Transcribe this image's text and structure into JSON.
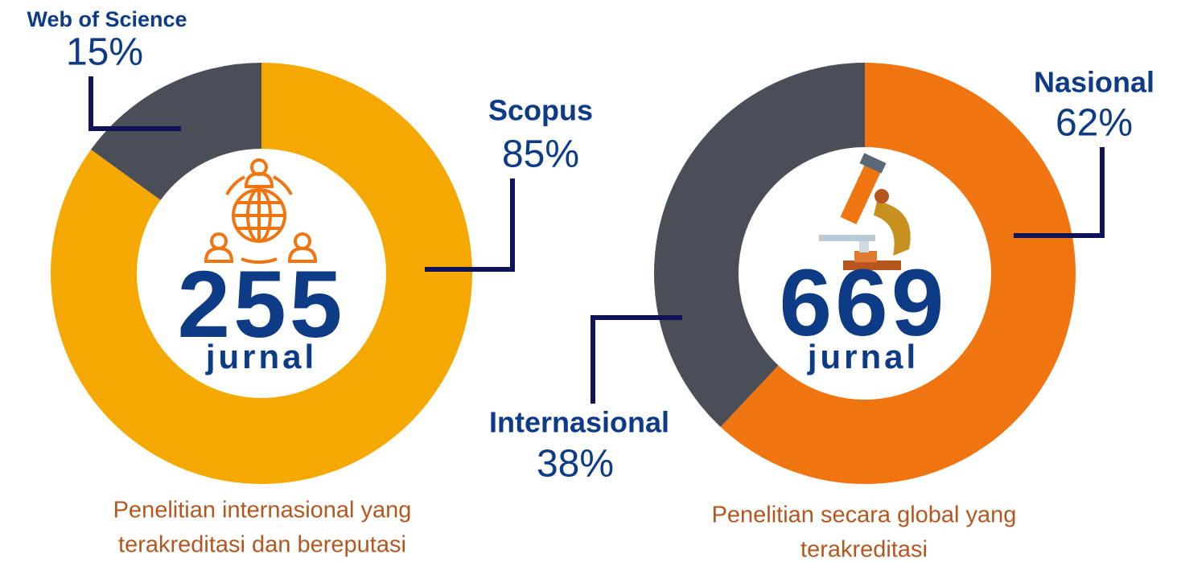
{
  "chart_data": [
    {
      "type": "donut",
      "categories": [
        "Scopus",
        "Web of Science"
      ],
      "values": [
        85,
        15
      ],
      "value_labels": [
        "85%",
        "15%"
      ],
      "colors": [
        "#f5a800",
        "#4a4f57"
      ],
      "total": 255,
      "unit": "jurnal",
      "caption": [
        "Penelitian internasional yang",
        "terakreditasi dan bereputasi"
      ]
    },
    {
      "type": "donut",
      "categories": [
        "Nasional",
        "Internasional"
      ],
      "values": [
        62,
        38
      ],
      "value_labels": [
        "62%",
        "38%"
      ],
      "colors": [
        "#f07510",
        "#4a4f57"
      ],
      "total": 669,
      "unit": "jurnal",
      "caption": [
        "Penelitian secara global yang",
        "terakreditasi"
      ]
    }
  ]
}
